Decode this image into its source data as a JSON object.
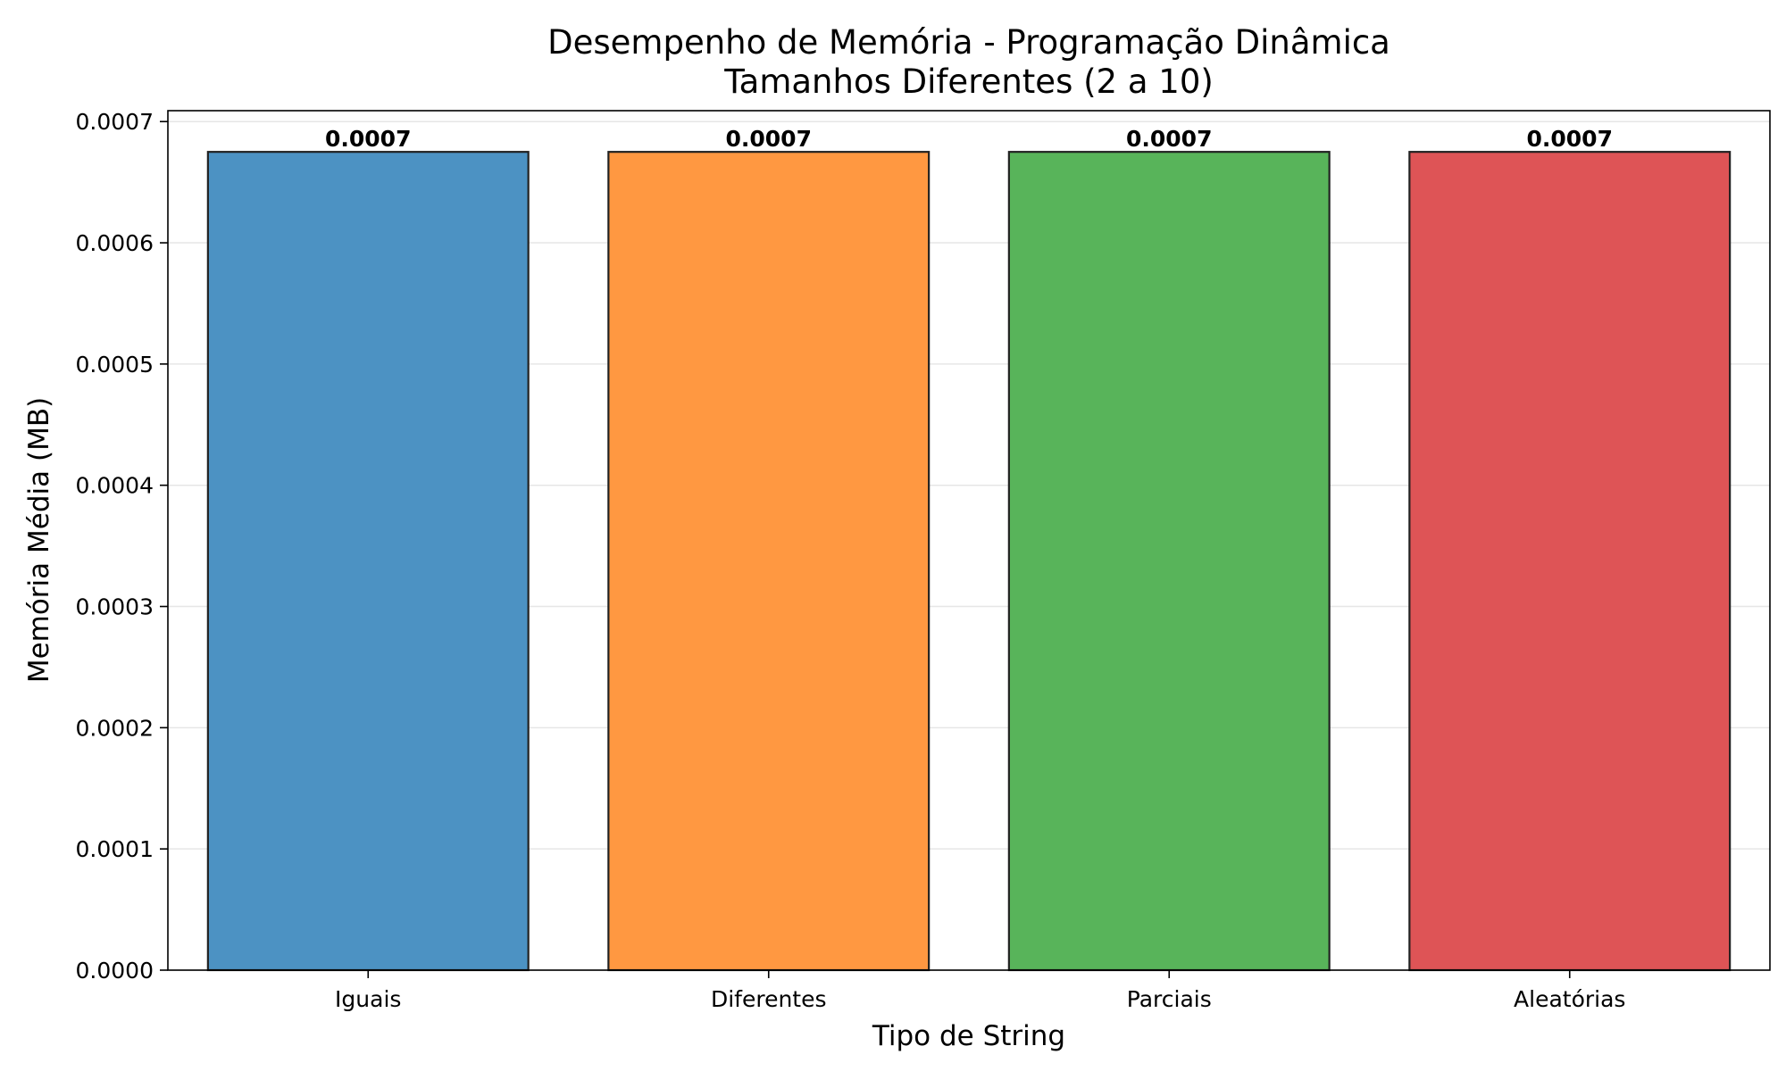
{
  "chart_data": {
    "type": "bar",
    "title": "Desempenho de Memória - Programação Dinâmica",
    "subtitle": "Tamanhos Diferentes (2 a 10)",
    "xlabel": "Tipo de String",
    "ylabel": "Memória Média (MB)",
    "categories": [
      "Iguais",
      "Diferentes",
      "Parciais",
      "Aleatórias"
    ],
    "values": [
      0.000675,
      0.000675,
      0.000675,
      0.000675
    ],
    "data_labels": [
      "0.0007",
      "0.0007",
      "0.0007",
      "0.0007"
    ],
    "colors": [
      "#4C92C3",
      "#FF9841",
      "#58B45A",
      "#DE5456"
    ],
    "edge_color": "#222222",
    "ylim": [
      0,
      0.000709
    ],
    "yticks": [
      0,
      0.0001,
      0.0002,
      0.0003,
      0.0004,
      0.0005,
      0.0006,
      0.0007
    ],
    "ytick_labels": [
      "0.0000",
      "0.0001",
      "0.0002",
      "0.0003",
      "0.0004",
      "0.0005",
      "0.0006",
      "0.0007"
    ],
    "grid": "y",
    "legend": "none"
  }
}
